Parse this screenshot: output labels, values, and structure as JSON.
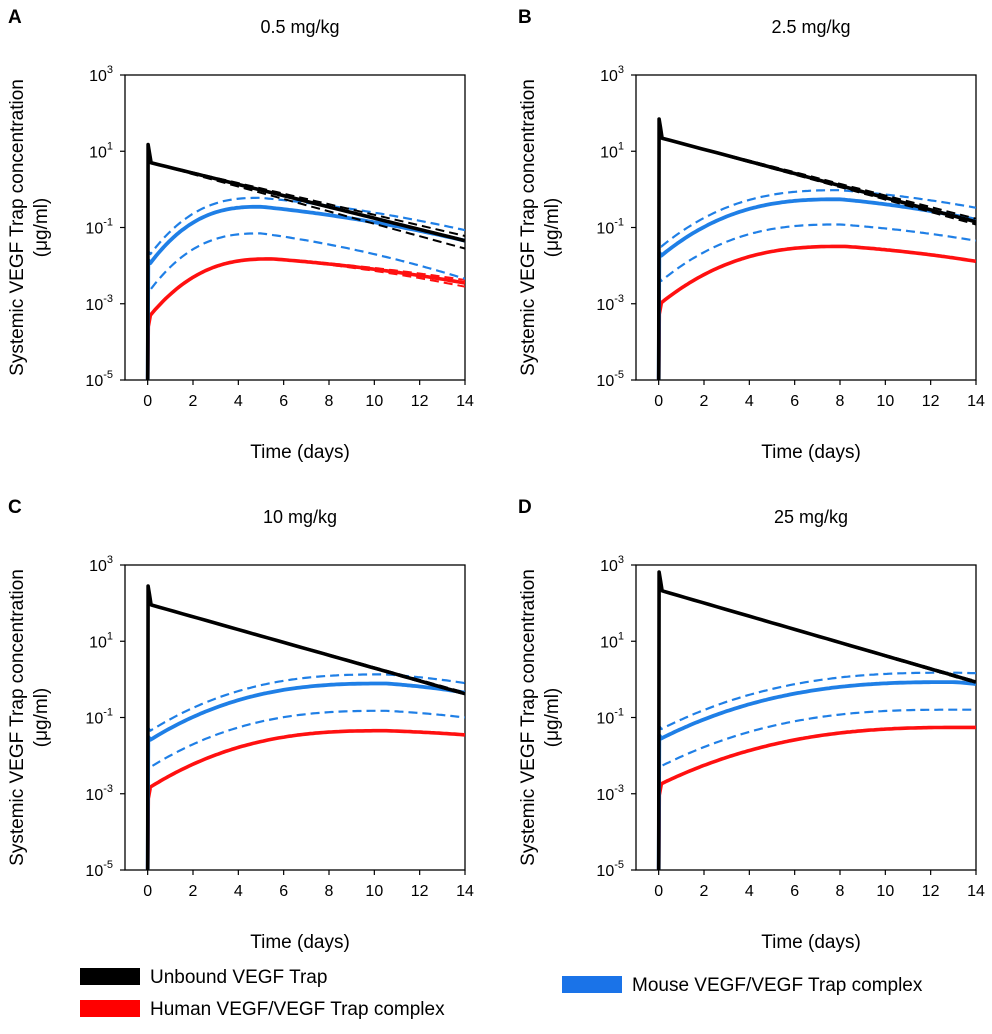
{
  "chart_data": [
    {
      "type": "line",
      "panel": "A",
      "title": "0.5 mg/kg",
      "xlabel": "Time (days)",
      "ylabel": [
        "Systemic VEGF Trap concentration",
        "(μg/ml)"
      ],
      "xlim": [
        -1,
        14
      ],
      "ylim": [
        1e-05,
        1000
      ],
      "yscale": "log",
      "xticks": [
        0,
        2,
        4,
        6,
        8,
        10,
        12,
        14
      ],
      "yticks": [
        {
          "base": "10",
          "exp": "3"
        },
        {
          "base": "10",
          "exp": "1"
        },
        {
          "base": "10",
          "exp": "-1"
        },
        {
          "base": "10",
          "exp": "-3"
        },
        {
          "base": "10",
          "exp": "-5"
        }
      ],
      "unbound": {
        "peak": 15,
        "start": 5,
        "end": 0.045,
        "end_upper": 0.06,
        "end_lower": 0.028
      },
      "mouse": {
        "mid": 0.35,
        "peak_t": 5,
        "end": 0.045,
        "upper_peak": 0.6,
        "upper_end": 0.085,
        "lower_peak": 0.07,
        "lower_end": 0.0045
      },
      "human": {
        "peak": 0.015,
        "peak_t": 5.5,
        "end": 0.0035,
        "upper_end": 0.0042,
        "lower_end": 0.0028
      }
    },
    {
      "type": "line",
      "panel": "B",
      "title": "2.5 mg/kg",
      "xlabel": "Time (days)",
      "ylabel": [
        "Systemic VEGF Trap concentration",
        "(μg/ml)"
      ],
      "xlim": [
        -1,
        14
      ],
      "ylim": [
        1e-05,
        1000
      ],
      "yscale": "log",
      "xticks": [
        0,
        2,
        4,
        6,
        8,
        10,
        12,
        14
      ],
      "yticks": [
        {
          "base": "10",
          "exp": "3"
        },
        {
          "base": "10",
          "exp": "1"
        },
        {
          "base": "10",
          "exp": "-1"
        },
        {
          "base": "10",
          "exp": "-3"
        },
        {
          "base": "10",
          "exp": "-5"
        }
      ],
      "unbound": {
        "peak": 70,
        "start": 22,
        "end": 0.14,
        "end_upper": 0.17,
        "end_lower": 0.12
      },
      "mouse": {
        "mid": 0.55,
        "peak_t": 8,
        "end": 0.16,
        "upper_peak": 0.95,
        "upper_end": 0.33,
        "lower_peak": 0.12,
        "lower_end": 0.045
      },
      "human": {
        "peak": 0.032,
        "peak_t": 8.2,
        "end": 0.013,
        "upper_end": 0.013,
        "lower_end": 0.013
      }
    },
    {
      "type": "line",
      "panel": "C",
      "title": "10 mg/kg",
      "xlabel": "Time (days)",
      "ylabel": [
        "Systemic VEGF Trap concentration",
        "(μg/ml)"
      ],
      "xlim": [
        -1,
        14
      ],
      "ylim": [
        1e-05,
        1000
      ],
      "yscale": "log",
      "xticks": [
        0,
        2,
        4,
        6,
        8,
        10,
        12,
        14
      ],
      "yticks": [
        {
          "base": "10",
          "exp": "3"
        },
        {
          "base": "10",
          "exp": "1"
        },
        {
          "base": "10",
          "exp": "-1"
        },
        {
          "base": "10",
          "exp": "-3"
        },
        {
          "base": "10",
          "exp": "-5"
        }
      ],
      "unbound": {
        "peak": 280,
        "start": 90,
        "end": 0.42,
        "end_upper": 0.45,
        "end_lower": 0.4
      },
      "mouse": {
        "mid": 0.78,
        "peak_t": 10.5,
        "end": 0.45,
        "upper_peak": 1.35,
        "upper_end": 0.8,
        "lower_peak": 0.15,
        "lower_end": 0.1
      },
      "human": {
        "peak": 0.045,
        "peak_t": 10.5,
        "end": 0.035,
        "upper_end": 0.035,
        "lower_end": 0.035
      }
    },
    {
      "type": "line",
      "panel": "D",
      "title": "25 mg/kg",
      "xlabel": "Time (days)",
      "ylabel": [
        "Systemic VEGF Trap concentration",
        "(μg/ml)"
      ],
      "xlim": [
        -1,
        14
      ],
      "ylim": [
        1e-05,
        1000
      ],
      "yscale": "log",
      "xticks": [
        0,
        2,
        4,
        6,
        8,
        10,
        12,
        14
      ],
      "yticks": [
        {
          "base": "10",
          "exp": "3"
        },
        {
          "base": "10",
          "exp": "1"
        },
        {
          "base": "10",
          "exp": "-1"
        },
        {
          "base": "10",
          "exp": "-3"
        },
        {
          "base": "10",
          "exp": "-5"
        }
      ],
      "unbound": {
        "peak": 650,
        "start": 210,
        "end": 0.85,
        "end_upper": 0.9,
        "end_lower": 0.8
      },
      "mouse": {
        "mid": 0.85,
        "peak_t": 13,
        "end": 0.75,
        "upper_peak": 1.5,
        "upper_end": 1.45,
        "lower_peak": 0.16,
        "lower_end": 0.16
      },
      "human": {
        "peak": 0.055,
        "peak_t": 13.5,
        "end": 0.055,
        "upper_end": 0.055,
        "lower_end": 0.055
      }
    }
  ],
  "legend": [
    {
      "label": "Unbound VEGF Trap",
      "color": "#000000"
    },
    {
      "label": "Human VEGF/VEGF Trap complex",
      "color": "#ff0000"
    },
    {
      "label": "Mouse VEGF/VEGF Trap complex",
      "color": "#1a73e8"
    }
  ],
  "colors": {
    "unbound": "#000000",
    "human": "#ff1010",
    "mouse": "#1f7fe6"
  }
}
